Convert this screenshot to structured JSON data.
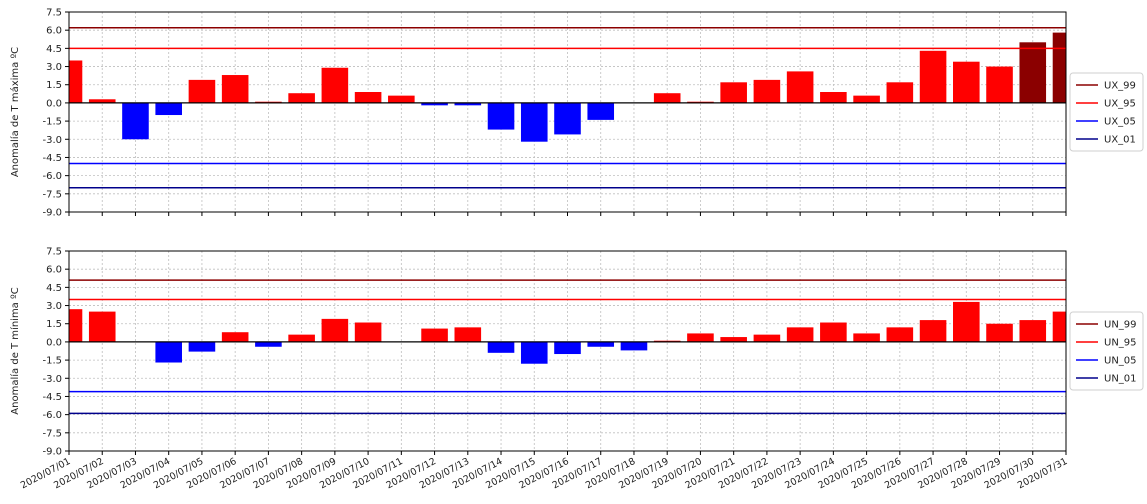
{
  "chart_data": [
    {
      "type": "bar",
      "ylabel": "Anomalía de T máxima ºC",
      "ylim": [
        -9.0,
        7.5
      ],
      "yticks": [
        "7.5",
        "6.0",
        "4.5",
        "3.0",
        "1.5",
        "0.0",
        "-1.5",
        "-3.0",
        "-4.5",
        "-6.0",
        "-7.5",
        "-9.0"
      ],
      "ytick_values": [
        7.5,
        6.0,
        4.5,
        3.0,
        1.5,
        0.0,
        -1.5,
        -3.0,
        -4.5,
        -6.0,
        -7.5,
        -9.0
      ],
      "grid": true,
      "legend_position": "right",
      "categories": [
        "2020/07/01",
        "2020/07/02",
        "2020/07/03",
        "2020/07/04",
        "2020/07/05",
        "2020/07/06",
        "2020/07/07",
        "2020/07/08",
        "2020/07/09",
        "2020/07/10",
        "2020/07/11",
        "2020/07/12",
        "2020/07/13",
        "2020/07/14",
        "2020/07/15",
        "2020/07/16",
        "2020/07/17",
        "2020/07/18",
        "2020/07/19",
        "2020/07/20",
        "2020/07/21",
        "2020/07/22",
        "2020/07/23",
        "2020/07/24",
        "2020/07/25",
        "2020/07/26",
        "2020/07/27",
        "2020/07/28",
        "2020/07/29",
        "2020/07/30",
        "2020/07/31"
      ],
      "values": [
        3.5,
        0.3,
        -3.0,
        -1.0,
        1.9,
        2.3,
        0.1,
        0.8,
        2.9,
        0.9,
        0.6,
        -0.2,
        -0.2,
        -2.2,
        -3.2,
        -2.6,
        -1.4,
        0.0,
        0.8,
        0.1,
        1.7,
        1.9,
        2.6,
        0.9,
        0.6,
        1.7,
        4.3,
        3.4,
        3.0,
        5.0,
        5.8
      ],
      "bar_colors": [
        "#ff0000",
        "#ff0000",
        "#0000ff",
        "#0000ff",
        "#ff0000",
        "#ff0000",
        "#ff0000",
        "#ff0000",
        "#ff0000",
        "#ff0000",
        "#ff0000",
        "#0000ff",
        "#0000ff",
        "#0000ff",
        "#0000ff",
        "#0000ff",
        "#0000ff",
        "#ff0000",
        "#ff0000",
        "#ff0000",
        "#ff0000",
        "#ff0000",
        "#ff0000",
        "#ff0000",
        "#ff0000",
        "#ff0000",
        "#ff0000",
        "#ff0000",
        "#ff0000",
        "#8b0000",
        "#8b0000"
      ],
      "thresholds": [
        {
          "name": "UX_99",
          "value": 6.2,
          "color": "#8b0000"
        },
        {
          "name": "UX_95",
          "value": 4.5,
          "color": "#ff0000"
        },
        {
          "name": "UX_05",
          "value": -5.0,
          "color": "#0000ff"
        },
        {
          "name": "UX_01",
          "value": -7.0,
          "color": "#00008b"
        }
      ]
    },
    {
      "type": "bar",
      "ylabel": "Anomalía de T mínima ºC",
      "ylim": [
        -9.0,
        7.5
      ],
      "yticks": [
        "7.5",
        "6.0",
        "4.5",
        "3.0",
        "1.5",
        "0.0",
        "-1.5",
        "-3.0",
        "-4.5",
        "-6.0",
        "-7.5",
        "-9.0"
      ],
      "ytick_values": [
        7.5,
        6.0,
        4.5,
        3.0,
        1.5,
        0.0,
        -1.5,
        -3.0,
        -4.5,
        -6.0,
        -7.5,
        -9.0
      ],
      "grid": true,
      "legend_position": "right",
      "categories": [
        "2020/07/01",
        "2020/07/02",
        "2020/07/03",
        "2020/07/04",
        "2020/07/05",
        "2020/07/06",
        "2020/07/07",
        "2020/07/08",
        "2020/07/09",
        "2020/07/10",
        "2020/07/11",
        "2020/07/12",
        "2020/07/13",
        "2020/07/14",
        "2020/07/15",
        "2020/07/16",
        "2020/07/17",
        "2020/07/18",
        "2020/07/19",
        "2020/07/20",
        "2020/07/21",
        "2020/07/22",
        "2020/07/23",
        "2020/07/24",
        "2020/07/25",
        "2020/07/26",
        "2020/07/27",
        "2020/07/28",
        "2020/07/29",
        "2020/07/30",
        "2020/07/31"
      ],
      "values": [
        2.7,
        2.5,
        0.0,
        -1.7,
        -0.8,
        0.8,
        -0.4,
        0.6,
        1.9,
        1.6,
        0.0,
        1.1,
        1.2,
        -0.9,
        -1.8,
        -1.0,
        -0.4,
        -0.7,
        0.1,
        0.7,
        0.4,
        0.6,
        1.2,
        1.6,
        0.7,
        1.2,
        1.8,
        3.3,
        1.5,
        1.8,
        2.5
      ],
      "bar_colors": [
        "#ff0000",
        "#ff0000",
        "#ff0000",
        "#0000ff",
        "#0000ff",
        "#ff0000",
        "#0000ff",
        "#ff0000",
        "#ff0000",
        "#ff0000",
        "#ff0000",
        "#ff0000",
        "#ff0000",
        "#0000ff",
        "#0000ff",
        "#0000ff",
        "#0000ff",
        "#0000ff",
        "#ff0000",
        "#ff0000",
        "#ff0000",
        "#ff0000",
        "#ff0000",
        "#ff0000",
        "#ff0000",
        "#ff0000",
        "#ff0000",
        "#ff0000",
        "#ff0000",
        "#ff0000",
        "#ff0000"
      ],
      "thresholds": [
        {
          "name": "UN_99",
          "value": 5.1,
          "color": "#8b0000"
        },
        {
          "name": "UN_95",
          "value": 3.5,
          "color": "#ff0000"
        },
        {
          "name": "UN_05",
          "value": -4.1,
          "color": "#0000ff"
        },
        {
          "name": "UN_01",
          "value": -5.9,
          "color": "#00008b"
        }
      ]
    }
  ]
}
